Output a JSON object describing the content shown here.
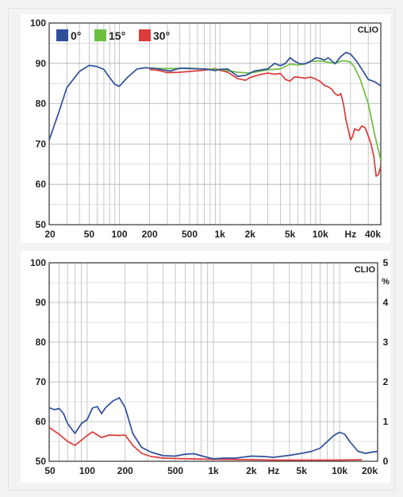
{
  "chart_data": [
    {
      "type": "line",
      "title": "",
      "xlabel": "",
      "ylabel": "",
      "brand": "CLIO",
      "xscale": "log",
      "xlim": [
        20,
        40000
      ],
      "ylim": [
        50,
        100
      ],
      "grid": true,
      "legend_position": "top-left",
      "x_tick_values": [
        20,
        50,
        100,
        200,
        500,
        1000,
        2000,
        5000,
        10000,
        20000,
        40000
      ],
      "x_tick_labels": [
        "20",
        "50",
        "100",
        "200",
        "500",
        "1k",
        "2k",
        "5k",
        "10k",
        "Hz",
        "40k"
      ],
      "y_ticks": [
        50,
        60,
        70,
        80,
        90,
        100
      ],
      "series": [
        {
          "name": "0°",
          "color": "#2f4f9a",
          "points": [
            [
              20,
              71
            ],
            [
              25,
              78
            ],
            [
              30,
              84
            ],
            [
              40,
              88
            ],
            [
              50,
              89.5
            ],
            [
              60,
              89.2
            ],
            [
              70,
              88.5
            ],
            [
              80,
              86.5
            ],
            [
              90,
              84.8
            ],
            [
              100,
              84.3
            ],
            [
              120,
              86.5
            ],
            [
              150,
              88.6
            ],
            [
              180,
              88.9
            ],
            [
              220,
              88.8
            ],
            [
              270,
              88.4
            ],
            [
              320,
              88.1
            ],
            [
              400,
              88.8
            ],
            [
              500,
              88.7
            ],
            [
              700,
              88.6
            ],
            [
              900,
              88.2
            ],
            [
              1000,
              88.5
            ],
            [
              1200,
              88.6
            ],
            [
              1500,
              86.8
            ],
            [
              1800,
              87
            ],
            [
              2200,
              88.1
            ],
            [
              2600,
              88.4
            ],
            [
              3000,
              88.6
            ],
            [
              3500,
              90
            ],
            [
              4000,
              89.4
            ],
            [
              4500,
              90
            ],
            [
              5000,
              91.4
            ],
            [
              5500,
              90.6
            ],
            [
              6200,
              89.9
            ],
            [
              7000,
              89.9
            ],
            [
              8000,
              90.5
            ],
            [
              9000,
              91.4
            ],
            [
              10000,
              91.2
            ],
            [
              11000,
              90.8
            ],
            [
              12000,
              91.4
            ],
            [
              14000,
              89.9
            ],
            [
              16000,
              91.7
            ],
            [
              18000,
              92.7
            ],
            [
              20000,
              92.3
            ],
            [
              23000,
              90.5
            ],
            [
              26000,
              88.5
            ],
            [
              30000,
              86
            ],
            [
              35000,
              85.4
            ],
            [
              40000,
              84.4
            ]
          ]
        },
        {
          "name": "15°",
          "color": "#6cbf3f",
          "points": [
            [
              200,
              88.8
            ],
            [
              300,
              88.7
            ],
            [
              500,
              88.8
            ],
            [
              700,
              88.6
            ],
            [
              1000,
              88.5
            ],
            [
              1500,
              87.8
            ],
            [
              2000,
              87.6
            ],
            [
              3000,
              88.4
            ],
            [
              4000,
              88.6
            ],
            [
              5000,
              89.8
            ],
            [
              6000,
              89.6
            ],
            [
              7000,
              89.8
            ],
            [
              8000,
              90.5
            ],
            [
              10000,
              90.6
            ],
            [
              12000,
              90.3
            ],
            [
              14000,
              90
            ],
            [
              16000,
              90.6
            ],
            [
              18000,
              90.6
            ],
            [
              20000,
              90.3
            ],
            [
              22000,
              89
            ],
            [
              25000,
              86
            ],
            [
              30000,
              80
            ],
            [
              35000,
              72
            ],
            [
              40000,
              66
            ]
          ]
        },
        {
          "name": "30°",
          "color": "#dd3a3a",
          "points": [
            [
              200,
              88.5
            ],
            [
              250,
              88.2
            ],
            [
              300,
              87.7
            ],
            [
              400,
              87.8
            ],
            [
              500,
              88
            ],
            [
              700,
              88.3
            ],
            [
              900,
              88.7
            ],
            [
              1000,
              88.3
            ],
            [
              1200,
              87.8
            ],
            [
              1500,
              86.2
            ],
            [
              1800,
              85.8
            ],
            [
              2000,
              86.5
            ],
            [
              2500,
              87.2
            ],
            [
              3000,
              87.6
            ],
            [
              3500,
              87.3
            ],
            [
              4000,
              87.5
            ],
            [
              4500,
              86
            ],
            [
              5000,
              85.6
            ],
            [
              5500,
              86.6
            ],
            [
              6000,
              86.6
            ],
            [
              7000,
              86.3
            ],
            [
              8000,
              86.6
            ],
            [
              9000,
              86.1
            ],
            [
              10000,
              85.5
            ],
            [
              11000,
              84.5
            ],
            [
              12000,
              84.2
            ],
            [
              13000,
              83.6
            ],
            [
              14000,
              82.5
            ],
            [
              15000,
              82
            ],
            [
              16000,
              82.5
            ],
            [
              17000,
              80
            ],
            [
              18000,
              76
            ],
            [
              19000,
              73.5
            ],
            [
              20000,
              71
            ],
            [
              21000,
              72
            ],
            [
              22000,
              73.8
            ],
            [
              24000,
              73.3
            ],
            [
              26000,
              74.5
            ],
            [
              28000,
              74
            ],
            [
              30000,
              72
            ],
            [
              32000,
              70
            ],
            [
              34000,
              67
            ],
            [
              36000,
              62
            ],
            [
              38000,
              62.5
            ],
            [
              40000,
              64.5
            ]
          ]
        }
      ]
    },
    {
      "type": "line",
      "title": "",
      "xlabel": "",
      "ylabel": "",
      "brand": "CLIO",
      "xscale": "log",
      "xlim": [
        50,
        20000
      ],
      "ylim": [
        50,
        100
      ],
      "y2lim": [
        0,
        5
      ],
      "y2_unit": "%",
      "grid": true,
      "x_tick_values": [
        50,
        100,
        200,
        500,
        1000,
        2000,
        3000,
        5000,
        10000,
        20000
      ],
      "x_tick_labels": [
        "50",
        "100",
        "200",
        "500",
        "1k",
        "2k",
        "Hz",
        "5k",
        "10k",
        "20k"
      ],
      "y_ticks": [
        50,
        60,
        70,
        80,
        90,
        100
      ],
      "y2_ticks": [
        0,
        1,
        2,
        3,
        4,
        5
      ],
      "series": [
        {
          "color": "#2f4f9a",
          "points": [
            [
              50,
              63.5
            ],
            [
              55,
              63
            ],
            [
              60,
              63.3
            ],
            [
              65,
              62
            ],
            [
              70,
              59.5
            ],
            [
              80,
              57
            ],
            [
              90,
              59.5
            ],
            [
              100,
              60.5
            ],
            [
              110,
              63.4
            ],
            [
              120,
              63.8
            ],
            [
              130,
              62
            ],
            [
              140,
              63.5
            ],
            [
              160,
              65.2
            ],
            [
              180,
              66
            ],
            [
              200,
              63.5
            ],
            [
              230,
              57
            ],
            [
              270,
              53.5
            ],
            [
              320,
              52.3
            ],
            [
              400,
              51.4
            ],
            [
              500,
              51.3
            ],
            [
              600,
              51.8
            ],
            [
              700,
              51.9
            ],
            [
              800,
              51.4
            ],
            [
              1000,
              50.6
            ],
            [
              1200,
              50.8
            ],
            [
              1500,
              50.8
            ],
            [
              2000,
              51.3
            ],
            [
              2500,
              51.2
            ],
            [
              3000,
              51
            ],
            [
              4000,
              51.5
            ],
            [
              5000,
              52
            ],
            [
              6000,
              52.5
            ],
            [
              7000,
              53.3
            ],
            [
              8000,
              55
            ],
            [
              9000,
              56.5
            ],
            [
              10000,
              57.3
            ],
            [
              11000,
              56.8
            ],
            [
              12000,
              55
            ],
            [
              14000,
              52.5
            ],
            [
              16000,
              52
            ],
            [
              18000,
              52.3
            ],
            [
              20000,
              52.5
            ]
          ]
        },
        {
          "color": "#dd3a3a",
          "points": [
            [
              50,
              58.5
            ],
            [
              60,
              56.8
            ],
            [
              70,
              55
            ],
            [
              80,
              54
            ],
            [
              90,
              55.3
            ],
            [
              100,
              56.5
            ],
            [
              110,
              57.4
            ],
            [
              130,
              56
            ],
            [
              150,
              56.6
            ],
            [
              180,
              56.5
            ],
            [
              200,
              56.6
            ],
            [
              230,
              54
            ],
            [
              270,
              52
            ],
            [
              320,
              51.2
            ],
            [
              400,
              50.8
            ],
            [
              500,
              50.7
            ],
            [
              700,
              50.6
            ],
            [
              1000,
              50.5
            ],
            [
              2000,
              50.4
            ],
            [
              3000,
              50.3
            ],
            [
              5000,
              50.3
            ],
            [
              10000,
              50.3
            ],
            [
              15000,
              50.4
            ]
          ]
        }
      ]
    }
  ]
}
